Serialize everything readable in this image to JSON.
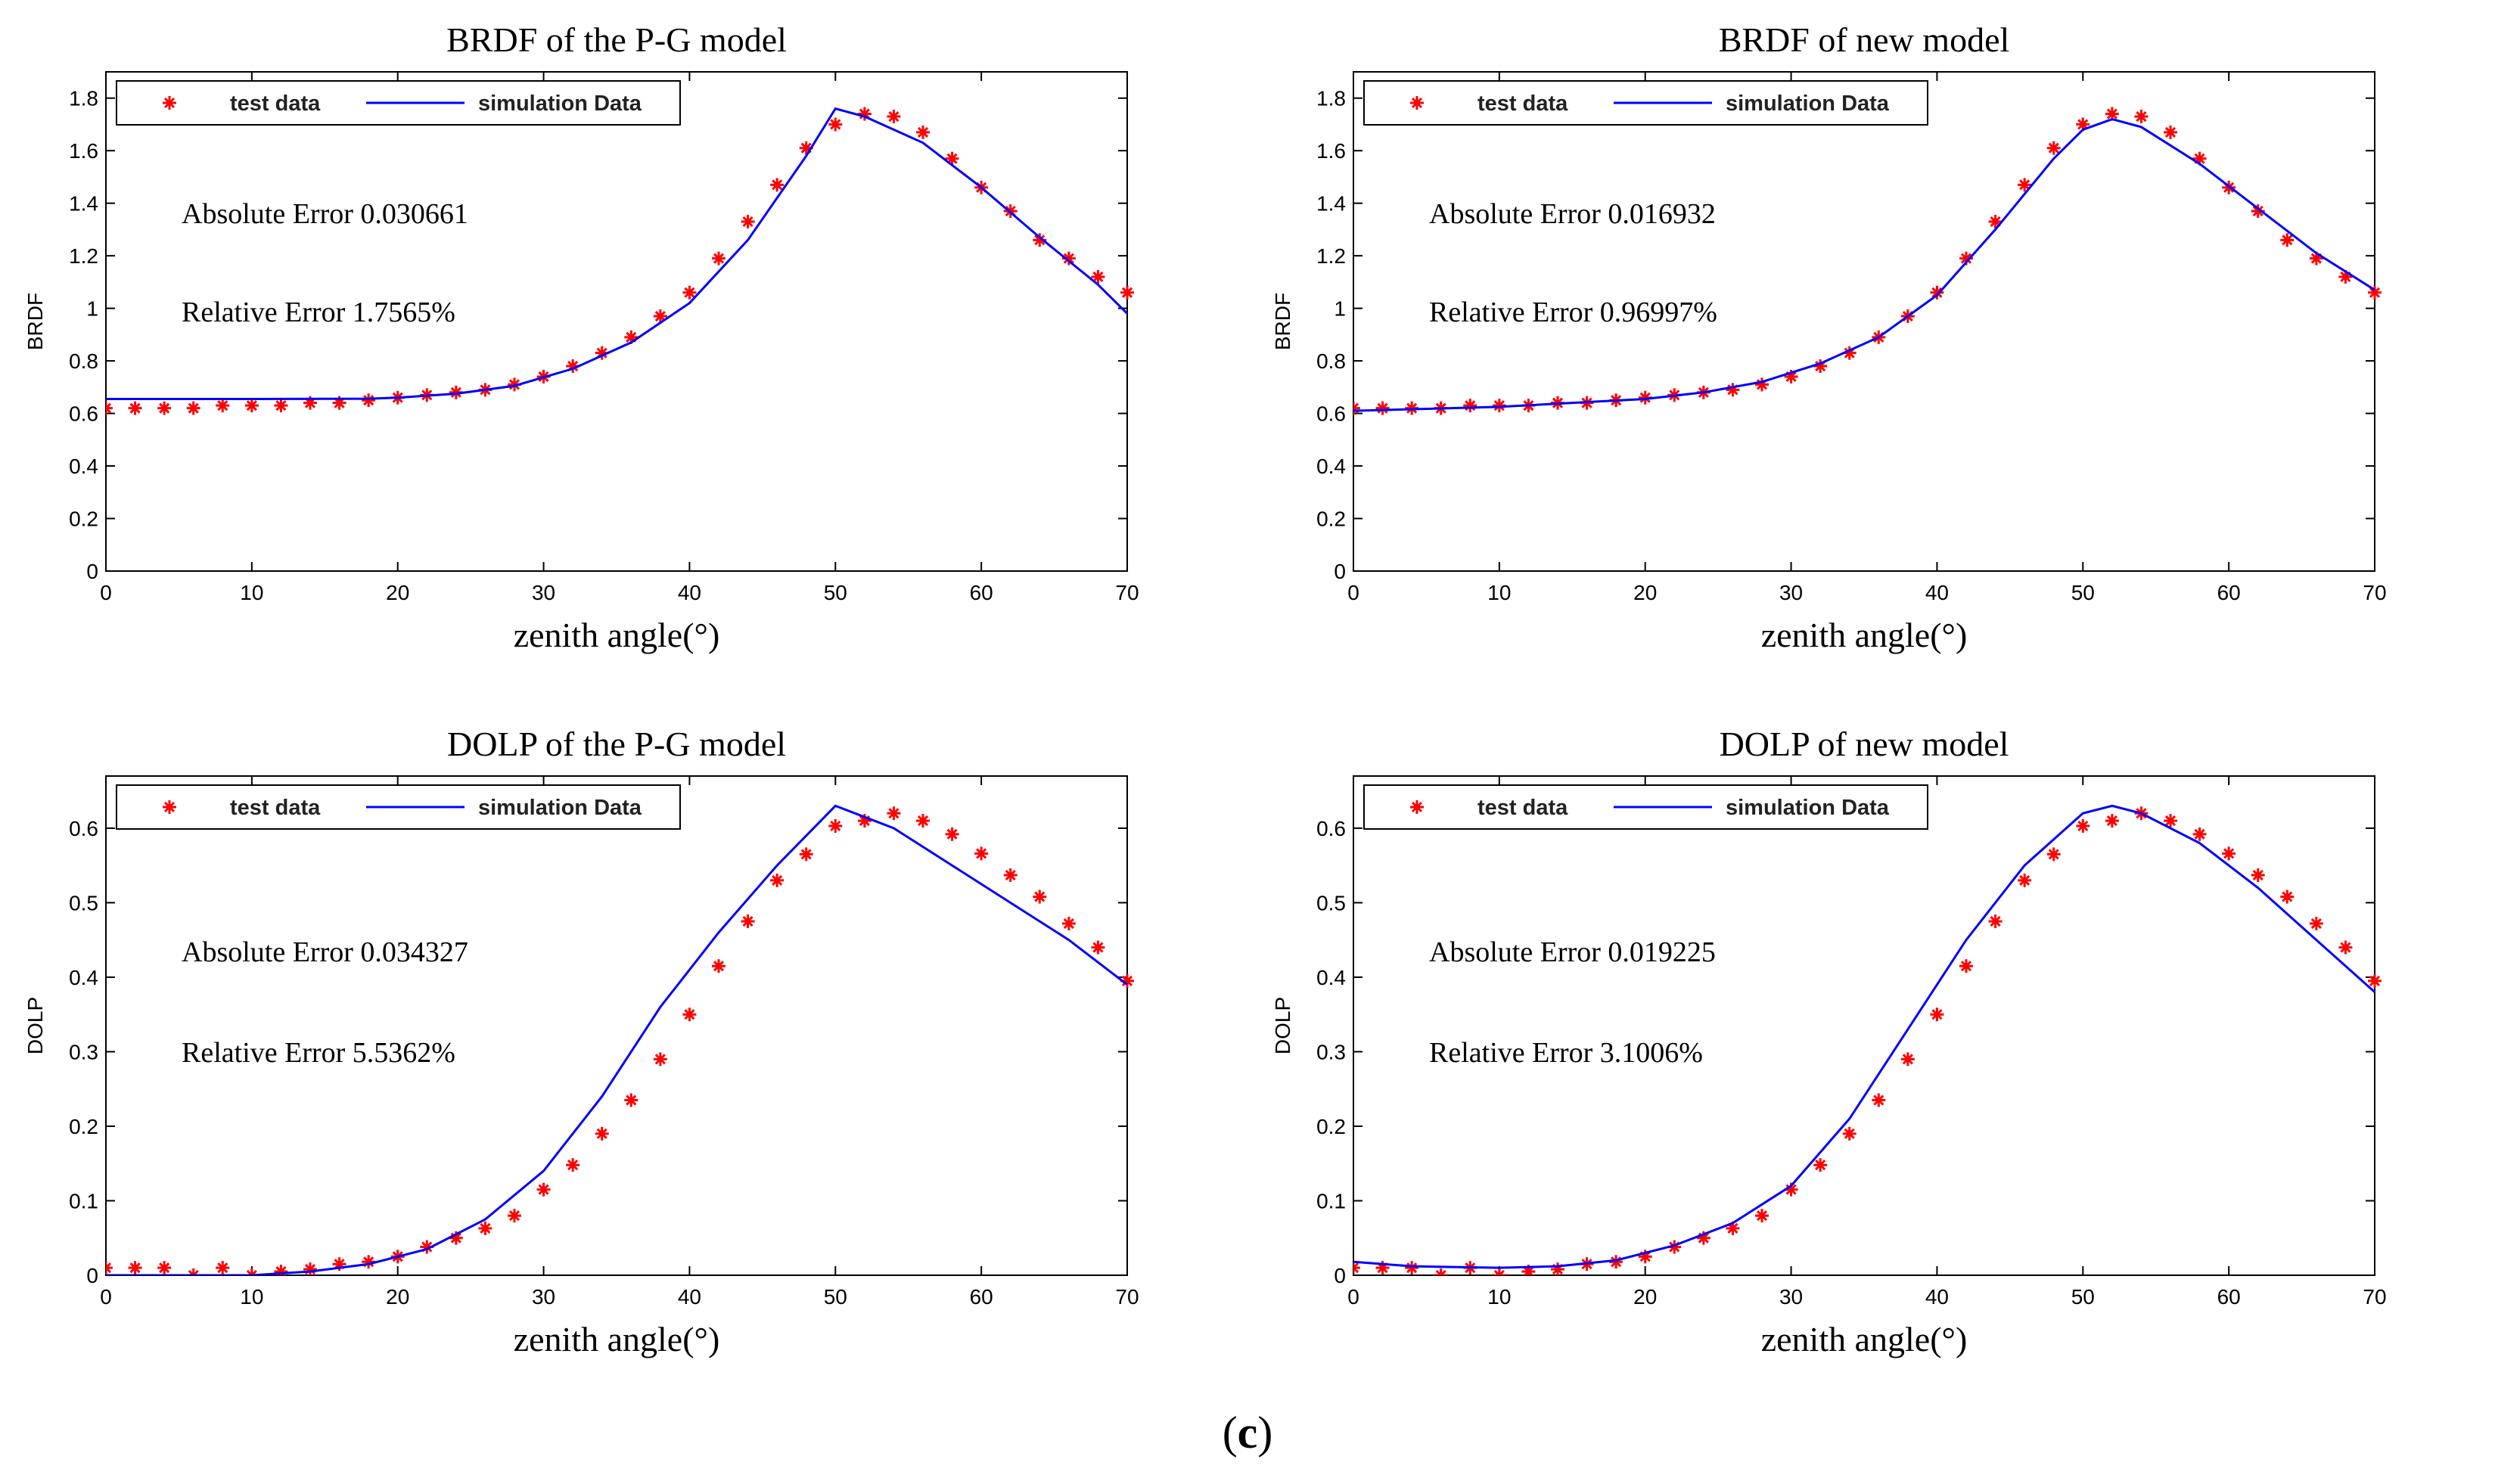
{
  "figure_label": {
    "open": "(",
    "letter": "c",
    "close": ")"
  },
  "colors": {
    "test_marker": "#ff0000",
    "simulation_line": "#0000ff",
    "axis": "#000000"
  },
  "chart_data": [
    {
      "type": "line",
      "title": "BRDF of the P-G model",
      "xlabel": "zenith angle(°)",
      "ylabel": "BRDF",
      "xlim": [
        0,
        70
      ],
      "ylim": [
        0,
        1.9
      ],
      "xticks": [
        0,
        10,
        20,
        30,
        40,
        50,
        60,
        70
      ],
      "yticks": [
        0,
        0.2,
        0.4,
        0.6,
        0.8,
        1,
        1.2,
        1.4,
        1.6,
        1.8
      ],
      "legend": {
        "position": "top-left",
        "entries": [
          "test data",
          "simulation Data"
        ]
      },
      "annotations": [
        "Absolute Error 0.030661",
        "Relative Error 1.7565%"
      ],
      "series": [
        {
          "name": "test data",
          "kind": "marker",
          "x": [
            0,
            2,
            4,
            6,
            8,
            10,
            12,
            14,
            16,
            18,
            20,
            22,
            24,
            26,
            28,
            30,
            32,
            34,
            36,
            38,
            40,
            42,
            44,
            46,
            48,
            50,
            52,
            54,
            56,
            58,
            60,
            62,
            64,
            66,
            68,
            70
          ],
          "y": [
            0.62,
            0.62,
            0.62,
            0.62,
            0.63,
            0.63,
            0.63,
            0.64,
            0.64,
            0.65,
            0.66,
            0.67,
            0.68,
            0.69,
            0.71,
            0.74,
            0.78,
            0.83,
            0.89,
            0.97,
            1.06,
            1.19,
            1.33,
            1.47,
            1.61,
            1.7,
            1.74,
            1.73,
            1.67,
            1.57,
            1.46,
            1.37,
            1.26,
            1.19,
            1.12,
            1.06
          ]
        },
        {
          "name": "simulation Data",
          "kind": "line",
          "x": [
            0,
            10,
            18,
            20,
            24,
            28,
            32,
            36,
            40,
            44,
            48,
            50,
            52,
            56,
            60,
            64,
            68,
            70
          ],
          "y": [
            0.655,
            0.655,
            0.656,
            0.66,
            0.675,
            0.705,
            0.77,
            0.87,
            1.02,
            1.26,
            1.58,
            1.76,
            1.73,
            1.63,
            1.46,
            1.27,
            1.09,
            0.98
          ]
        }
      ]
    },
    {
      "type": "line",
      "title": "BRDF of new model",
      "xlabel": "zenith angle(°)",
      "ylabel": "BRDF",
      "xlim": [
        0,
        70
      ],
      "ylim": [
        0,
        1.9
      ],
      "xticks": [
        0,
        10,
        20,
        30,
        40,
        50,
        60,
        70
      ],
      "yticks": [
        0,
        0.2,
        0.4,
        0.6,
        0.8,
        1,
        1.2,
        1.4,
        1.6,
        1.8
      ],
      "legend": {
        "position": "top-left",
        "entries": [
          "test data",
          "simulation Data"
        ]
      },
      "annotations": [
        "Absolute Error 0.016932",
        "Relative Error 0.96997%"
      ],
      "series": [
        {
          "name": "test data",
          "kind": "marker",
          "x": [
            0,
            2,
            4,
            6,
            8,
            10,
            12,
            14,
            16,
            18,
            20,
            22,
            24,
            26,
            28,
            30,
            32,
            34,
            36,
            38,
            40,
            42,
            44,
            46,
            48,
            50,
            52,
            54,
            56,
            58,
            60,
            62,
            64,
            66,
            68,
            70
          ],
          "y": [
            0.62,
            0.62,
            0.62,
            0.62,
            0.63,
            0.63,
            0.63,
            0.64,
            0.64,
            0.65,
            0.66,
            0.67,
            0.68,
            0.69,
            0.71,
            0.74,
            0.78,
            0.83,
            0.89,
            0.97,
            1.06,
            1.19,
            1.33,
            1.47,
            1.61,
            1.7,
            1.74,
            1.73,
            1.67,
            1.57,
            1.46,
            1.37,
            1.26,
            1.19,
            1.12,
            1.06
          ]
        },
        {
          "name": "simulation Data",
          "kind": "line",
          "x": [
            0,
            10,
            20,
            24,
            28,
            32,
            36,
            40,
            44,
            48,
            50,
            52,
            54,
            58,
            62,
            66,
            70
          ],
          "y": [
            0.61,
            0.625,
            0.655,
            0.68,
            0.72,
            0.79,
            0.89,
            1.05,
            1.3,
            1.57,
            1.68,
            1.72,
            1.69,
            1.55,
            1.38,
            1.21,
            1.07
          ]
        }
      ]
    },
    {
      "type": "line",
      "title": "DOLP of the P-G model",
      "xlabel": "zenith angle(°)",
      "ylabel": "DOLP",
      "xlim": [
        0,
        70
      ],
      "ylim": [
        0,
        0.67
      ],
      "xticks": [
        0,
        10,
        20,
        30,
        40,
        50,
        60,
        70
      ],
      "yticks": [
        0,
        0.1,
        0.2,
        0.3,
        0.4,
        0.5,
        0.6
      ],
      "legend": {
        "position": "top-left",
        "entries": [
          "test data",
          "simulation Data"
        ]
      },
      "annotations": [
        "Absolute Error 0.034327",
        "Relative Error 5.5362%"
      ],
      "series": [
        {
          "name": "test data",
          "kind": "marker",
          "x": [
            0,
            2,
            4,
            6,
            8,
            10,
            12,
            14,
            16,
            18,
            20,
            22,
            24,
            26,
            28,
            30,
            32,
            34,
            36,
            38,
            40,
            42,
            44,
            46,
            48,
            50,
            52,
            54,
            56,
            58,
            60,
            62,
            64,
            66,
            68,
            70
          ],
          "y": [
            0.01,
            0.01,
            0.01,
            0.0,
            0.01,
            0.0,
            0.005,
            0.008,
            0.015,
            0.018,
            0.025,
            0.038,
            0.05,
            0.063,
            0.08,
            0.115,
            0.148,
            0.19,
            0.235,
            0.29,
            0.35,
            0.415,
            0.475,
            0.53,
            0.565,
            0.603,
            0.61,
            0.62,
            0.61,
            0.592,
            0.566,
            0.537,
            0.508,
            0.472,
            0.44,
            0.395
          ]
        },
        {
          "name": "simulation Data",
          "kind": "line",
          "x": [
            0,
            10,
            14,
            18,
            22,
            26,
            30,
            34,
            38,
            42,
            46,
            50,
            54,
            58,
            62,
            66,
            70
          ],
          "y": [
            0.0,
            0.0,
            0.005,
            0.015,
            0.035,
            0.075,
            0.14,
            0.24,
            0.36,
            0.46,
            0.55,
            0.63,
            0.6,
            0.55,
            0.5,
            0.45,
            0.39
          ]
        }
      ]
    },
    {
      "type": "line",
      "title": "DOLP of new model",
      "xlabel": "zenith angle(°)",
      "ylabel": "DOLP",
      "xlim": [
        0,
        70
      ],
      "ylim": [
        0,
        0.67
      ],
      "xticks": [
        0,
        10,
        20,
        30,
        40,
        50,
        60,
        70
      ],
      "yticks": [
        0,
        0.1,
        0.2,
        0.3,
        0.4,
        0.5,
        0.6
      ],
      "legend": {
        "position": "top-left",
        "entries": [
          "test data",
          "simulation Data"
        ]
      },
      "annotations": [
        "Absolute Error 0.019225",
        "Relative Error 3.1006%"
      ],
      "series": [
        {
          "name": "test data",
          "kind": "marker",
          "x": [
            0,
            2,
            4,
            6,
            8,
            10,
            12,
            14,
            16,
            18,
            20,
            22,
            24,
            26,
            28,
            30,
            32,
            34,
            36,
            38,
            40,
            42,
            44,
            46,
            48,
            50,
            52,
            54,
            56,
            58,
            60,
            62,
            64,
            66,
            68,
            70
          ],
          "y": [
            0.01,
            0.01,
            0.01,
            0.0,
            0.01,
            0.0,
            0.005,
            0.008,
            0.015,
            0.018,
            0.025,
            0.038,
            0.05,
            0.063,
            0.08,
            0.115,
            0.148,
            0.19,
            0.235,
            0.29,
            0.35,
            0.415,
            0.475,
            0.53,
            0.565,
            0.603,
            0.61,
            0.62,
            0.61,
            0.592,
            0.566,
            0.537,
            0.508,
            0.472,
            0.44,
            0.395
          ]
        },
        {
          "name": "simulation Data",
          "kind": "line",
          "x": [
            0,
            4,
            10,
            14,
            18,
            22,
            26,
            30,
            34,
            38,
            42,
            46,
            50,
            52,
            54,
            58,
            62,
            66,
            70
          ],
          "y": [
            0.018,
            0.012,
            0.01,
            0.012,
            0.02,
            0.04,
            0.07,
            0.12,
            0.21,
            0.33,
            0.45,
            0.55,
            0.62,
            0.63,
            0.62,
            0.58,
            0.52,
            0.45,
            0.38
          ]
        }
      ]
    }
  ]
}
